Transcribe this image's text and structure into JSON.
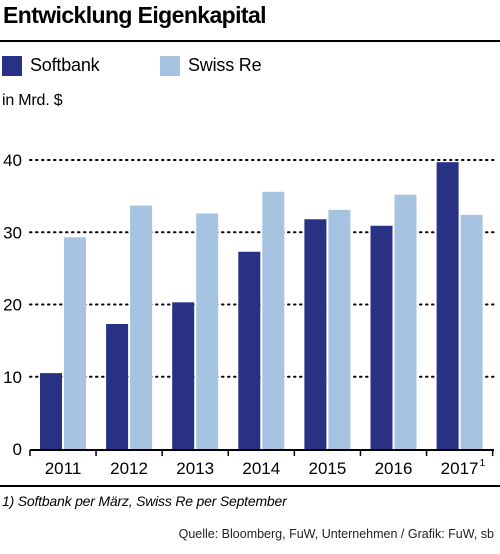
{
  "header": {
    "title": "Entwicklung Eigenkapital"
  },
  "unit_label": "in Mrd. $",
  "footnote": "1) Softbank per März, Swiss Re per September",
  "source": "Quelle: Bloomberg, FuW, Unternehmen / Grafik: FuW, sb",
  "colors": {
    "softbank": "#283184",
    "swiss_re": "#a6c3e2",
    "grid": "#000000"
  },
  "chart_data": {
    "type": "bar",
    "title": "Entwicklung Eigenkapital",
    "ylabel": "in Mrd. $",
    "xlabel": "",
    "categories": [
      "2011",
      "2012",
      "2013",
      "2014",
      "2015",
      "2016",
      "2017"
    ],
    "category_superscripts": [
      "",
      "",
      "",
      "",
      "",
      "",
      "1"
    ],
    "series": [
      {
        "name": "Softbank",
        "values": [
          10.5,
          17.3,
          20.3,
          27.3,
          31.8,
          30.9,
          39.7
        ]
      },
      {
        "name": "Swiss Re",
        "values": [
          29.3,
          33.7,
          32.6,
          35.6,
          33.1,
          35.2,
          32.4
        ]
      }
    ],
    "ylim": [
      0,
      40
    ],
    "yticks": [
      0,
      10,
      20,
      30,
      40
    ],
    "grid": "dotted horizontal",
    "legend": "top-left"
  }
}
